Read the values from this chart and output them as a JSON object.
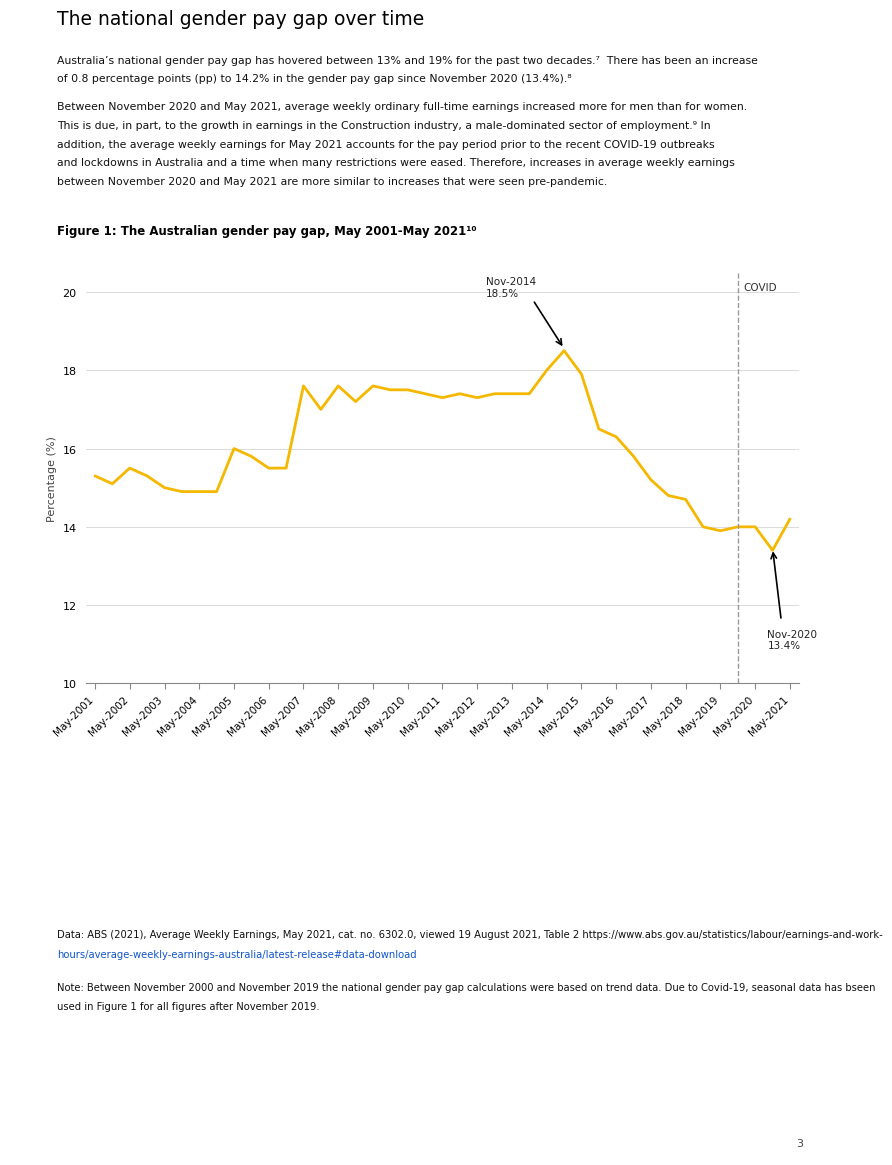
{
  "title": "The national gender pay gap over time",
  "figure_label": "Figure 1: The Australian gender pay gap, May 2001-May 2021¹⁰",
  "paragraph1_line1": "Australia’s national gender pay gap has hovered between 13% and 19% for the past two decades.⁷  There has been an increase",
  "paragraph1_line2": "of 0.8 percentage points (pp) to 14.2% in the gender pay gap since November 2020 (13.4%).⁸",
  "paragraph2_line1": "Between November 2020 and May 2021, average weekly ordinary full-time earnings increased more for men than for women.",
  "paragraph2_line2": "This is due, in part, to the growth in earnings in the Construction industry, a male-dominated sector of employment.⁹ In",
  "paragraph2_line3": "addition, the average weekly earnings for May 2021 accounts for the pay period prior to the recent COVID-19 outbreaks",
  "paragraph2_line4": "and lockdowns in Australia and a time when many restrictions were eased. Therefore, increases in average weekly earnings",
  "paragraph2_line5": "between November 2020 and May 2021 are more similar to increases that were seen pre-pandemic.",
  "data_note_part1": "Data: ABS (2021), Average Weekly Earnings, May 2021, cat. no. 6302.0, viewed 19 August 2021, Table 2 ",
  "data_note_url": "https://www.abs.gov.au/statistics/labour/earnings-and-work-",
  "data_note_url2": "hours/average-weekly-earnings-australia/latest-release#data-download",
  "method_note_line1": "Note: Between November 2000 and November 2019 the national gender pay gap calculations were based on trend data. Due to Covid-19, seasonal data has bseen",
  "method_note_line2": "used in Figure 1 for all figures after November 2019.",
  "line_color": "#F5B800",
  "line_width": 2.0,
  "ylabel": "Percentage (%)",
  "ylim": [
    10,
    20.5
  ],
  "yticks": [
    10,
    12,
    14,
    16,
    18,
    20
  ],
  "x_labels": [
    "May-2001",
    "May-2002",
    "May-2003",
    "May-2004",
    "May-2005",
    "May-2006",
    "May-2007",
    "May-2008",
    "May-2009",
    "May-2010",
    "May-2011",
    "May-2012",
    "May-2013",
    "May-2014",
    "May-2015",
    "May-2016",
    "May-2017",
    "May-2018",
    "May-2019",
    "May-2020",
    "May-2021"
  ],
  "x_label_indices": [
    0,
    2,
    4,
    6,
    8,
    10,
    12,
    14,
    16,
    18,
    20,
    22,
    24,
    26,
    28,
    30,
    32,
    34,
    36,
    38,
    40
  ],
  "background_color": "#ffffff",
  "title_color": "#000000",
  "title_underline_color": "#F5B800",
  "page_number": "3",
  "bottom_line_color": "#F5B800",
  "values_full": [
    15.3,
    15.1,
    15.5,
    15.3,
    15.0,
    14.9,
    14.9,
    14.9,
    16.0,
    15.8,
    15.5,
    15.5,
    17.6,
    17.0,
    17.6,
    17.2,
    17.6,
    17.5,
    17.5,
    17.4,
    17.3,
    17.4,
    17.3,
    17.4,
    17.4,
    17.4,
    18.0,
    18.5,
    17.9,
    16.5,
    16.3,
    15.8,
    15.2,
    14.8,
    14.7,
    14.0,
    13.9,
    14.0,
    14.0,
    13.4,
    14.2
  ]
}
